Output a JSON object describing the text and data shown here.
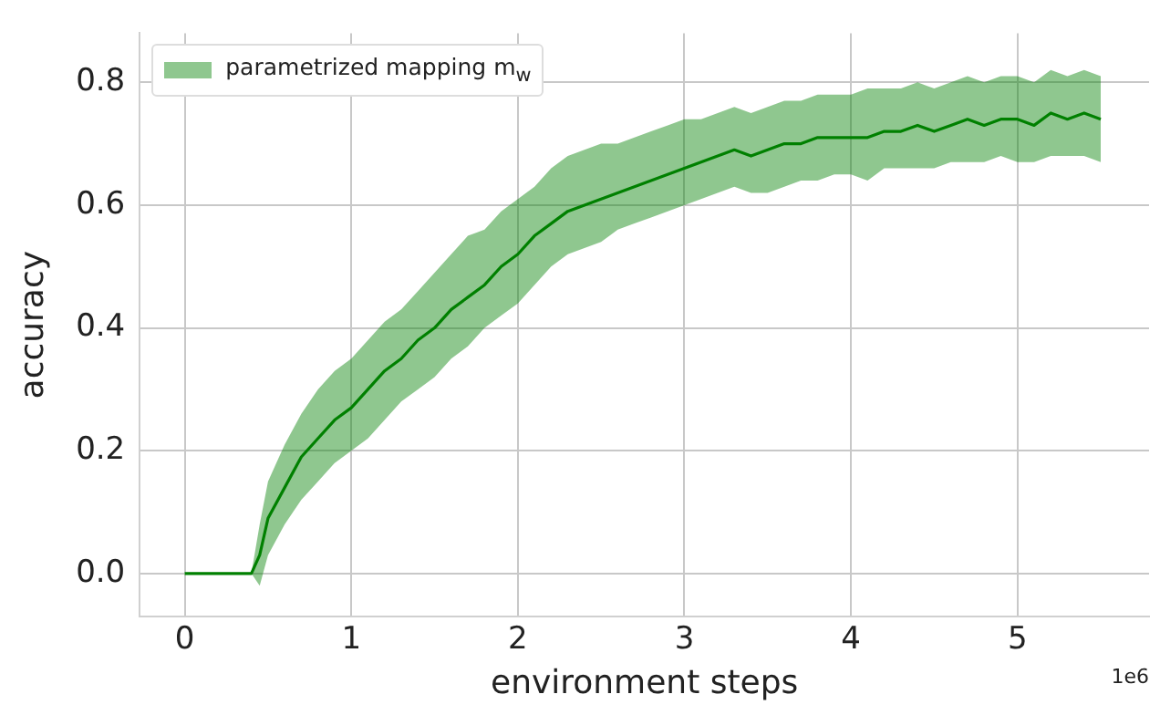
{
  "chart_data": {
    "type": "line",
    "xlabel": "environment steps",
    "ylabel": "accuracy",
    "annotations": [
      "1e6"
    ],
    "xlim": [
      -0.27,
      5.79
    ],
    "xticks": [
      0,
      1,
      2,
      3,
      4,
      5
    ],
    "ylim": [
      -0.07,
      0.88
    ],
    "yticks": [
      {
        "value": 0,
        "label": "0.0"
      },
      0.2,
      0.4,
      0.6,
      0.8
    ],
    "grid": true,
    "legend": "top left",
    "marker": "none",
    "line_style": "solid",
    "x": [
      0,
      0.4,
      0.45,
      0.5,
      0.6,
      0.7,
      0.8,
      0.9,
      1.0,
      1.1,
      1.2,
      1.3,
      1.4,
      1.5,
      1.6,
      1.7,
      1.8,
      1.9,
      2.0,
      2.1,
      2.2,
      2.3,
      2.4,
      2.5,
      2.6,
      2.7,
      2.8,
      2.9,
      3.0,
      3.1,
      3.2,
      3.3,
      3.4,
      3.5,
      3.6,
      3.7,
      3.8,
      3.9,
      4.0,
      4.1,
      4.2,
      4.3,
      4.4,
      4.5,
      4.6,
      4.7,
      4.8,
      4.9,
      5.0,
      5.1,
      5.2,
      5.3,
      5.4,
      5.5
    ],
    "series": [
      {
        "name": "parametrized mapping m$_{w}$",
        "color": "#008000",
        "values": [
          0,
          0,
          0.03,
          0.09,
          0.14,
          0.19,
          0.22,
          0.25,
          0.27,
          0.3,
          0.33,
          0.35,
          0.38,
          0.4,
          0.43,
          0.45,
          0.47,
          0.5,
          0.52,
          0.55,
          0.57,
          0.59,
          0.6,
          0.61,
          0.62,
          0.63,
          0.64,
          0.65,
          0.66,
          0.67,
          0.68,
          0.69,
          0.68,
          0.69,
          0.7,
          0.7,
          0.71,
          0.71,
          0.71,
          0.71,
          0.72,
          0.72,
          0.73,
          0.72,
          0.73,
          0.74,
          0.73,
          0.74,
          0.74,
          0.73,
          0.75,
          0.74,
          0.75,
          0.74
        ],
        "lower": [
          0,
          0,
          -0.02,
          0.03,
          0.08,
          0.12,
          0.15,
          0.18,
          0.2,
          0.22,
          0.25,
          0.28,
          0.3,
          0.32,
          0.35,
          0.37,
          0.4,
          0.42,
          0.44,
          0.47,
          0.5,
          0.52,
          0.53,
          0.54,
          0.56,
          0.57,
          0.58,
          0.59,
          0.6,
          0.61,
          0.62,
          0.63,
          0.62,
          0.62,
          0.63,
          0.64,
          0.64,
          0.65,
          0.65,
          0.64,
          0.66,
          0.66,
          0.66,
          0.66,
          0.67,
          0.67,
          0.67,
          0.68,
          0.67,
          0.67,
          0.68,
          0.68,
          0.68,
          0.67
        ],
        "upper": [
          0,
          0,
          0.08,
          0.15,
          0.21,
          0.26,
          0.3,
          0.33,
          0.35,
          0.38,
          0.41,
          0.43,
          0.46,
          0.49,
          0.52,
          0.55,
          0.56,
          0.59,
          0.61,
          0.63,
          0.66,
          0.68,
          0.69,
          0.7,
          0.7,
          0.71,
          0.72,
          0.73,
          0.74,
          0.74,
          0.75,
          0.76,
          0.75,
          0.76,
          0.77,
          0.77,
          0.78,
          0.78,
          0.78,
          0.79,
          0.79,
          0.79,
          0.8,
          0.79,
          0.8,
          0.81,
          0.8,
          0.81,
          0.81,
          0.8,
          0.82,
          0.81,
          0.82,
          0.81
        ]
      }
    ]
  }
}
